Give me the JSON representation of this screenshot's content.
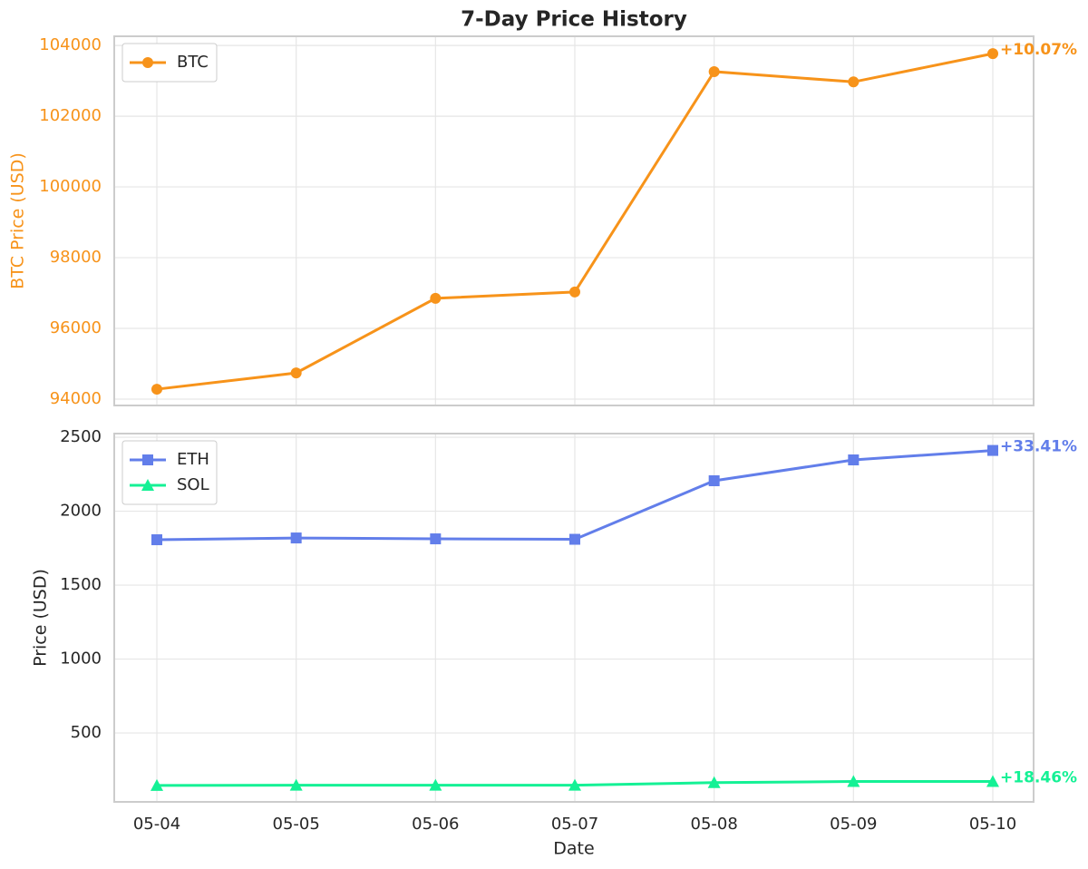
{
  "chart_data": [
    {
      "type": "line",
      "title": "7-Day Price History",
      "y_label": "BTC Price (USD)",
      "y_label_color": "#f7931a",
      "ylim": [
        93820,
        104260
      ],
      "yticks": [
        94000,
        96000,
        98000,
        100000,
        102000,
        104000
      ],
      "grid": true,
      "legend": "upper left",
      "series": [
        {
          "name": "BTC",
          "color": "#f7931a",
          "marker": "circle",
          "values": [
            94280,
            94740,
            96850,
            97030,
            103260,
            102970,
            103770
          ],
          "end_label": "+10.07%"
        }
      ]
    },
    {
      "type": "line",
      "x_label": "Date",
      "y_label": "Price (USD)",
      "categories": [
        "05-04",
        "05-05",
        "05-06",
        "05-07",
        "05-08",
        "05-09",
        "05-10"
      ],
      "ylim": [
        34,
        2525
      ],
      "yticks": [
        500,
        1000,
        1500,
        2000,
        2500
      ],
      "grid": true,
      "legend": "upper left",
      "series": [
        {
          "name": "ETH",
          "color": "#627eea",
          "marker": "square",
          "values": [
            1807,
            1819,
            1813,
            1810,
            2206,
            2347,
            2411
          ],
          "end_label": "+33.41%"
        },
        {
          "name": "SOL",
          "color": "#14f195",
          "marker": "triangle",
          "values": [
            145,
            147,
            147,
            147,
            164,
            172,
            172
          ],
          "end_label": "+18.46%"
        }
      ]
    }
  ]
}
